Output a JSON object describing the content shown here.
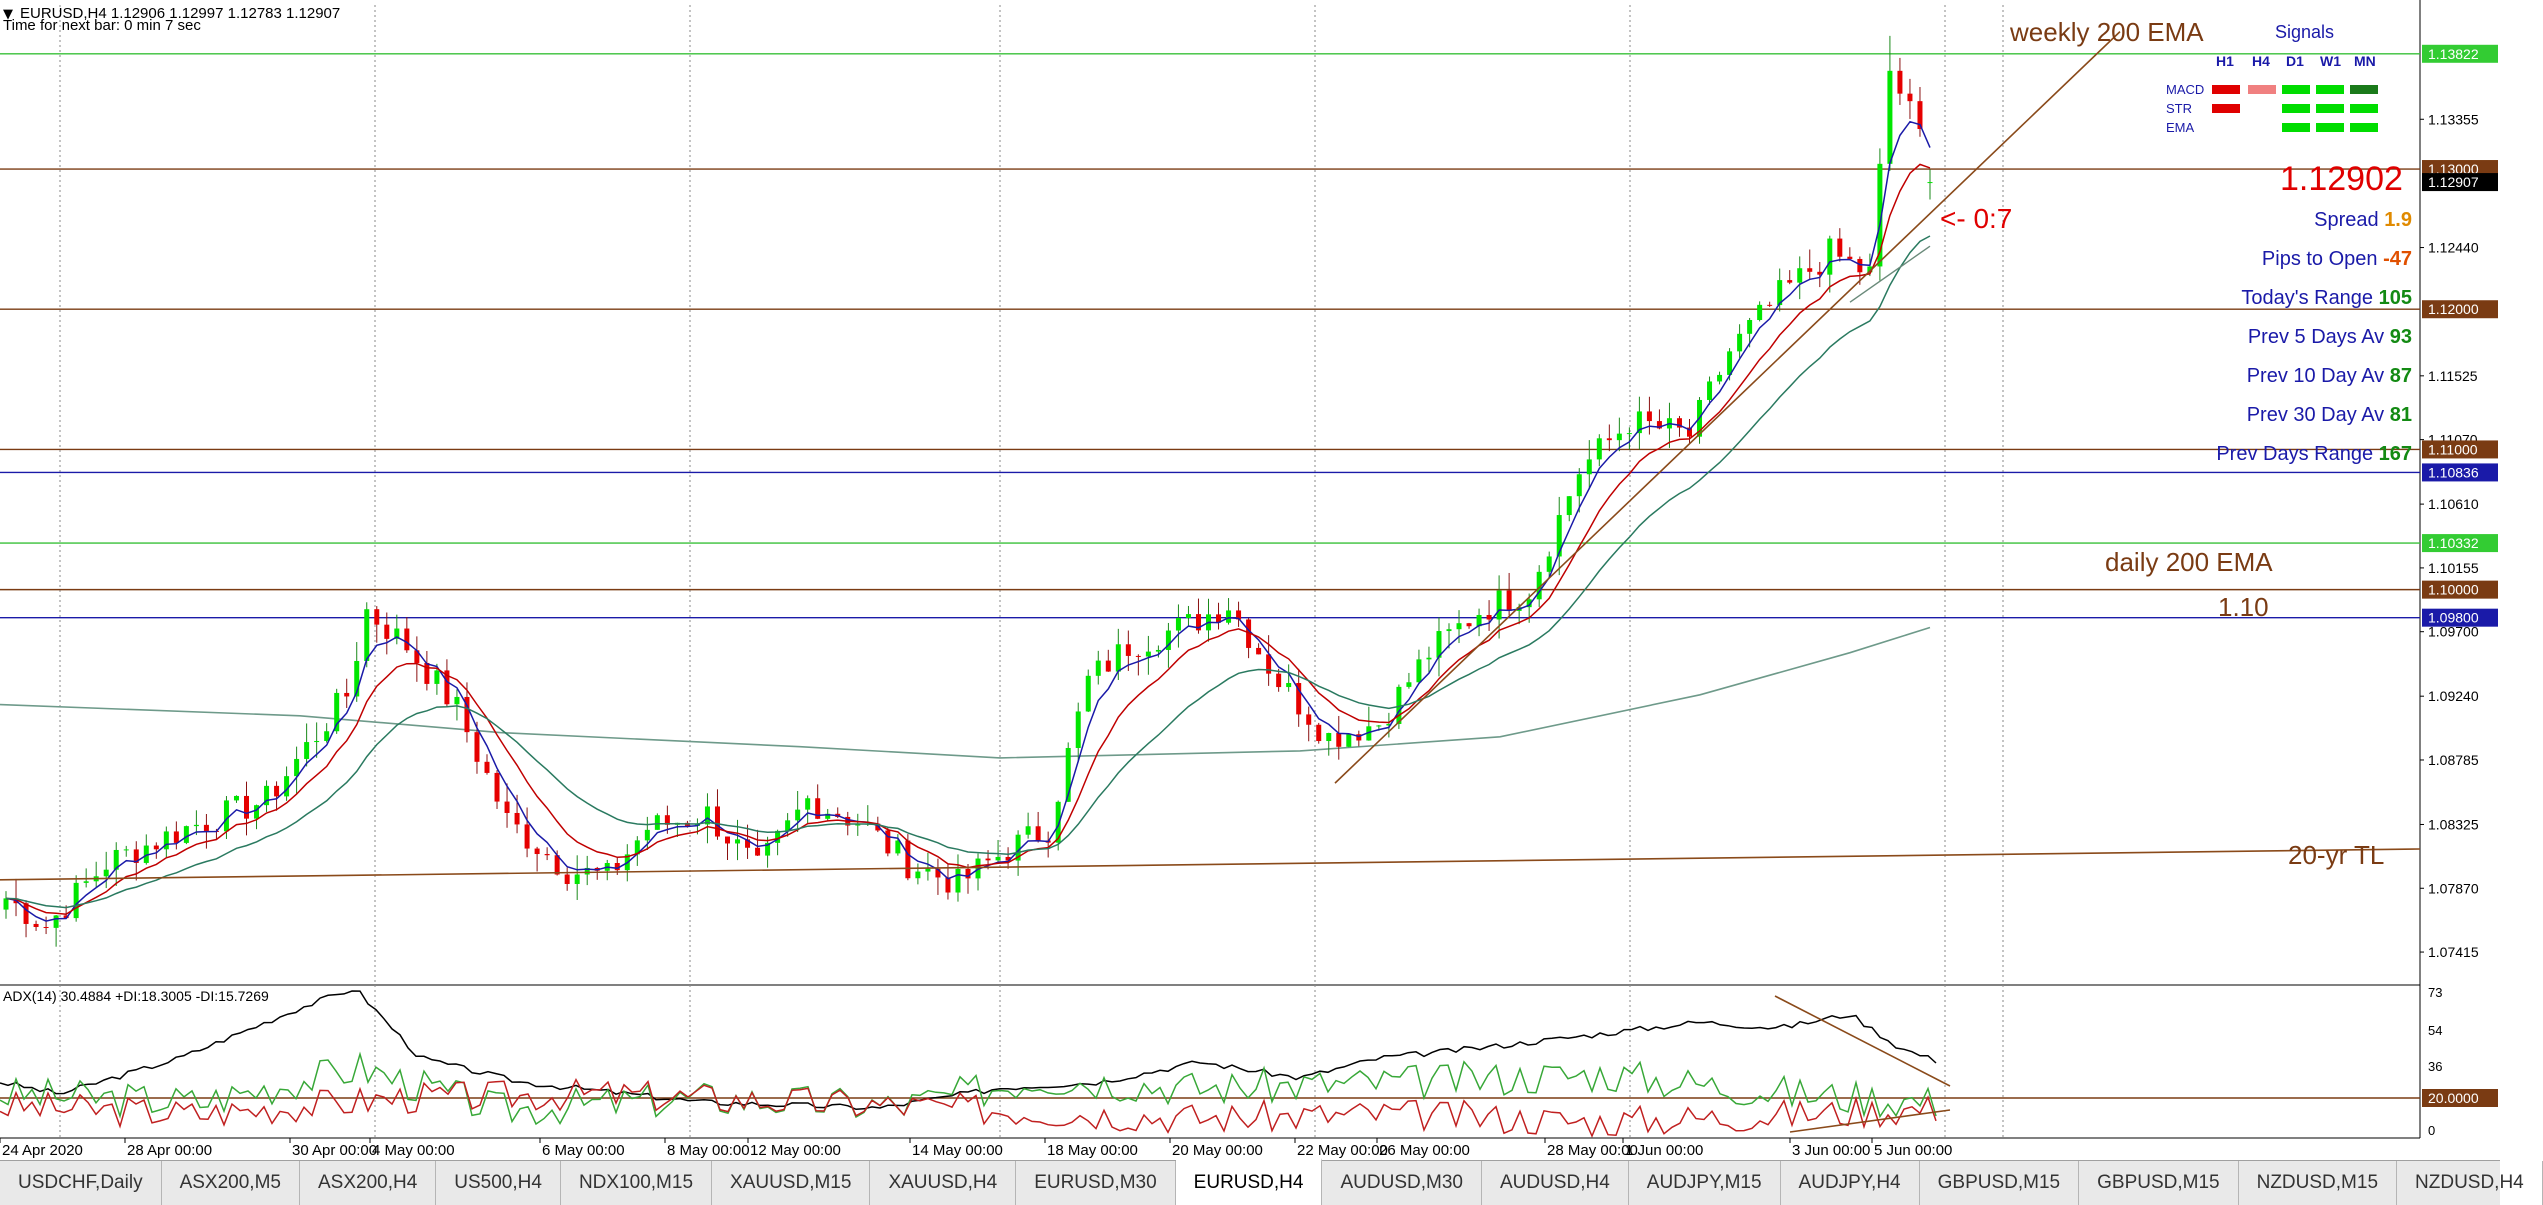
{
  "header": {
    "symbol_line": "EURUSD,H4  1.12906 1.12997 1.12783 1.12907",
    "timer_line": "Time for next bar: 0 min 7 sec"
  },
  "colors": {
    "bull": "#00e600",
    "bear": "#e60000",
    "level_brown": "#7a3b13",
    "blue_line": "#1a1aa8",
    "green_line": "#38c038",
    "ema_fast": "#1a1aa8",
    "ema_mid": "#c00000",
    "ema_slow": "#2a7a60",
    "ema_200": "#6e9a8a",
    "annotation": "#7a3b13",
    "price_red": "#e00000"
  },
  "price_axis": {
    "ticks": [
      "1.13355",
      "1.12440",
      "1.11525",
      "1.11070",
      "1.10610",
      "1.10155",
      "1.09700",
      "1.09240",
      "1.08785",
      "1.08325",
      "1.07870",
      "1.07415"
    ],
    "ticks_values": [
      1.13355,
      1.1244,
      1.11525,
      1.1107,
      1.1061,
      1.10155,
      1.097,
      1.0924,
      1.08785,
      1.08325,
      1.0787,
      1.07415
    ],
    "range": [
      1.0718,
      1.1417
    ]
  },
  "price_levels": [
    {
      "value": 1.13822,
      "label": "1.13822",
      "bg": "#33cc33",
      "fg": "#ffffff",
      "line": "#38c038"
    },
    {
      "value": 1.13,
      "label": "1.13000",
      "bg": "#7a3b13",
      "fg": "#ffffff",
      "line": "#7a3b13"
    },
    {
      "value": 1.12907,
      "label": "1.12907",
      "bg": "#000000",
      "fg": "#ffffff",
      "line": ""
    },
    {
      "value": 1.12,
      "label": "1.12000",
      "bg": "#7a3b13",
      "fg": "#ffffff",
      "line": "#7a3b13"
    },
    {
      "value": 1.11,
      "label": "1.11000",
      "bg": "#7a3b13",
      "fg": "#ffffff",
      "line": "#7a3b13"
    },
    {
      "value": 1.10836,
      "label": "1.10836",
      "bg": "#1a1aa8",
      "fg": "#ffffff",
      "line": "#1a1aa8"
    },
    {
      "value": 1.10332,
      "label": "1.10332",
      "bg": "#33cc33",
      "fg": "#ffffff",
      "line": "#38c038"
    },
    {
      "value": 1.1,
      "label": "1.10000",
      "bg": "#7a3b13",
      "fg": "#ffffff",
      "line": "#7a3b13"
    },
    {
      "value": 1.098,
      "label": "1.09800",
      "bg": "#1a1aa8",
      "fg": "#ffffff",
      "line": "#1a1aa8"
    }
  ],
  "annotations": {
    "weekly_ema": "weekly 200 EMA",
    "daily_ema": "daily 200 EMA",
    "level_110": "1.10",
    "tl_20yr": "20-yr TL",
    "countdown": "<- 0:7",
    "current_price": "1.12902"
  },
  "signals": {
    "title": "Signals",
    "columns": [
      "H1",
      "H4",
      "D1",
      "W1",
      "MN"
    ],
    "rows": [
      {
        "label": "MACD",
        "colors": [
          "#e00000",
          "#f08080",
          "#00dd00",
          "#00dd00",
          "#1a7a1a"
        ]
      },
      {
        "label": "STR",
        "colors": [
          "#e00000",
          "",
          "#00dd00",
          "#00dd00",
          "#00dd00"
        ]
      },
      {
        "label": "EMA",
        "colors": [
          "",
          "",
          "#00dd00",
          "#00dd00",
          "#00dd00"
        ]
      }
    ]
  },
  "stats": [
    {
      "label": "Spread",
      "value": "1.9",
      "color": "#e08a00"
    },
    {
      "label": "Pips to Open",
      "value": "-47",
      "color": "#e05000"
    },
    {
      "label": "Today's Range",
      "value": "105",
      "color": "#138a13"
    },
    {
      "label": "Prev 5 Days Av",
      "value": "93",
      "color": "#138a13"
    },
    {
      "label": "Prev 10 Day Av",
      "value": "87",
      "color": "#138a13"
    },
    {
      "label": "Prev 30 Day Av",
      "value": "81",
      "color": "#138a13"
    },
    {
      "label": "Prev Days Range",
      "value": "167",
      "color": "#138a13"
    }
  ],
  "indicator": {
    "label": "ADX(14) 30.4884 +DI:18.3005 -DI:15.7269",
    "ticks": [
      "73",
      "54",
      "36",
      "0"
    ],
    "ticks_values": [
      73,
      54,
      36,
      0
    ],
    "level": {
      "value": 20,
      "label": "20.0000"
    },
    "range": [
      0,
      75
    ]
  },
  "time_axis": {
    "labels": [
      "24 Apr 2020",
      "28 Apr 00:00",
      "30 Apr 00:00",
      "4 May 00:00",
      "6 May 00:00",
      "8 May 00:00",
      "12 May 00:00",
      "14 May 00:00",
      "18 May 00:00",
      "20 May 00:00",
      "22 May 00:00",
      "26 May 00:00",
      "28 May 00:00",
      "1 Jun 00:00",
      "3 Jun 00:00",
      "5 Jun 00:00"
    ]
  },
  "tabs": [
    {
      "label": "USDCHF,Daily",
      "active": false
    },
    {
      "label": "ASX200,M5",
      "active": false
    },
    {
      "label": "ASX200,H4",
      "active": false
    },
    {
      "label": "US500,H4",
      "active": false
    },
    {
      "label": "NDX100,M15",
      "active": false
    },
    {
      "label": "XAUUSD,M15",
      "active": false
    },
    {
      "label": "XAUUSD,H4",
      "active": false
    },
    {
      "label": "EURUSD,M30",
      "active": false
    },
    {
      "label": "EURUSD,H4",
      "active": true
    },
    {
      "label": "AUDUSD,M30",
      "active": false
    },
    {
      "label": "AUDUSD,H4",
      "active": false
    },
    {
      "label": "AUDJPY,M15",
      "active": false
    },
    {
      "label": "AUDJPY,H4",
      "active": false
    },
    {
      "label": "GBPUSD,M15",
      "active": false
    },
    {
      "label": "GBPUSD,M15",
      "active": false
    },
    {
      "label": "NZDUSD,M15",
      "active": false
    },
    {
      "label": "NZDUSD,H4",
      "active": false
    }
  ],
  "chart_data": {
    "type": "candlestick",
    "symbol": "EURUSD",
    "timeframe": "H4",
    "key_prices": [
      [
        0,
        1.078
      ],
      [
        4,
        1.076
      ],
      [
        10,
        1.0805
      ],
      [
        18,
        1.083
      ],
      [
        26,
        1.085
      ],
      [
        34,
        1.0925
      ],
      [
        36,
        1.0985
      ],
      [
        40,
        1.096
      ],
      [
        45,
        1.0915
      ],
      [
        50,
        1.0835
      ],
      [
        56,
        1.08
      ],
      [
        60,
        1.0795
      ],
      [
        64,
        1.083
      ],
      [
        70,
        1.084
      ],
      [
        75,
        1.08
      ],
      [
        80,
        1.085
      ],
      [
        85,
        1.0835
      ],
      [
        90,
        1.0805
      ],
      [
        95,
        1.079
      ],
      [
        100,
        1.0815
      ],
      [
        104,
        1.083
      ],
      [
        108,
        1.0935
      ],
      [
        112,
        1.096
      ],
      [
        118,
        1.0975
      ],
      [
        122,
        1.099
      ],
      [
        127,
        1.0935
      ],
      [
        132,
        1.0895
      ],
      [
        137,
        1.0905
      ],
      [
        142,
        1.0955
      ],
      [
        147,
        1.0985
      ],
      [
        152,
        1.1
      ],
      [
        157,
        1.1085
      ],
      [
        162,
        1.112
      ],
      [
        168,
        1.111
      ],
      [
        172,
        1.117
      ],
      [
        177,
        1.121
      ],
      [
        182,
        1.124
      ],
      [
        186,
        1.1225
      ],
      [
        188,
        1.137
      ],
      [
        190,
        1.134
      ],
      [
        193,
        1.1291
      ]
    ],
    "bars": 193
  }
}
